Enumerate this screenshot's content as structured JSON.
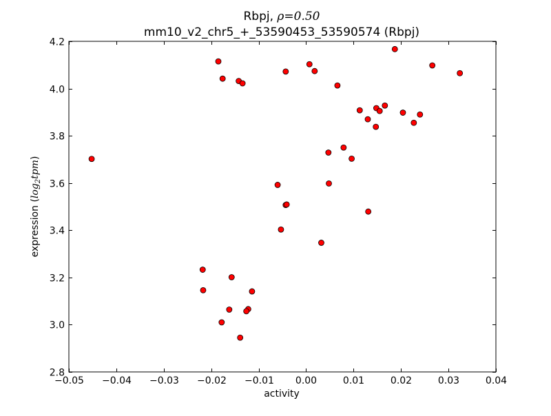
{
  "chart_data": {
    "type": "scatter",
    "title_line1_prefix": "Rbpj, ",
    "title_line1_rho": "ρ",
    "title_line1_eq": "=0.50",
    "title_line2": "mm10_v2_chr5_+_53590453_53590574 (Rbpj)",
    "xlabel": "activity",
    "ylabel_prefix": "expression (",
    "ylabel_math": "log",
    "ylabel_sub": "2",
    "ylabel_math2": "tpm",
    "ylabel_suffix": ")",
    "xlim": [
      -0.05,
      0.04
    ],
    "ylim": [
      2.8,
      4.2
    ],
    "xticks": [
      -0.05,
      -0.04,
      -0.03,
      -0.02,
      -0.01,
      0.0,
      0.01,
      0.02,
      0.03,
      0.04
    ],
    "xtick_labels": [
      "−0.05",
      "−0.04",
      "−0.03",
      "−0.02",
      "−0.01",
      "0.00",
      "0.01",
      "0.02",
      "0.03",
      "0.04"
    ],
    "yticks": [
      2.8,
      3.0,
      3.2,
      3.4,
      3.6,
      3.8,
      4.0,
      4.2
    ],
    "ytick_labels": [
      "2.8",
      "3.0",
      "3.2",
      "3.4",
      "3.6",
      "3.8",
      "4.0",
      "4.2"
    ],
    "grid": false,
    "marker_color": "#ff0000",
    "marker_edge": "#000000",
    "points": [
      {
        "x": -0.0452,
        "y": 3.702
      },
      {
        "x": -0.0185,
        "y": 4.115
      },
      {
        "x": -0.0176,
        "y": 4.042
      },
      {
        "x": -0.0142,
        "y": 4.032
      },
      {
        "x": -0.0134,
        "y": 4.022
      },
      {
        "x": -0.0043,
        "y": 4.072
      },
      {
        "x": 0.0007,
        "y": 4.103
      },
      {
        "x": 0.0018,
        "y": 4.074
      },
      {
        "x": 0.0066,
        "y": 4.013
      },
      {
        "x": 0.0187,
        "y": 4.167
      },
      {
        "x": 0.0266,
        "y": 4.098
      },
      {
        "x": 0.0324,
        "y": 4.065
      },
      {
        "x": 0.0113,
        "y": 3.908
      },
      {
        "x": 0.013,
        "y": 3.87
      },
      {
        "x": 0.0148,
        "y": 3.917
      },
      {
        "x": 0.0155,
        "y": 3.905
      },
      {
        "x": 0.0166,
        "y": 3.928
      },
      {
        "x": 0.0147,
        "y": 3.838
      },
      {
        "x": 0.0204,
        "y": 3.898
      },
      {
        "x": 0.0227,
        "y": 3.855
      },
      {
        "x": 0.024,
        "y": 3.89
      },
      {
        "x": 0.0047,
        "y": 3.729
      },
      {
        "x": 0.0079,
        "y": 3.75
      },
      {
        "x": 0.0096,
        "y": 3.703
      },
      {
        "x": 0.0048,
        "y": 3.598
      },
      {
        "x": -0.006,
        "y": 3.592
      },
      {
        "x": -0.0043,
        "y": 3.507
      },
      {
        "x": -0.0041,
        "y": 3.509
      },
      {
        "x": -0.0053,
        "y": 3.403
      },
      {
        "x": 0.0131,
        "y": 3.479
      },
      {
        "x": 0.0032,
        "y": 3.347
      },
      {
        "x": -0.0218,
        "y": 3.233
      },
      {
        "x": -0.0217,
        "y": 3.146
      },
      {
        "x": -0.0157,
        "y": 3.201
      },
      {
        "x": -0.0114,
        "y": 3.141
      },
      {
        "x": -0.0162,
        "y": 3.064
      },
      {
        "x": -0.0122,
        "y": 3.066
      },
      {
        "x": -0.0126,
        "y": 3.057
      },
      {
        "x": -0.0178,
        "y": 3.01
      },
      {
        "x": -0.0139,
        "y": 2.945
      }
    ]
  }
}
